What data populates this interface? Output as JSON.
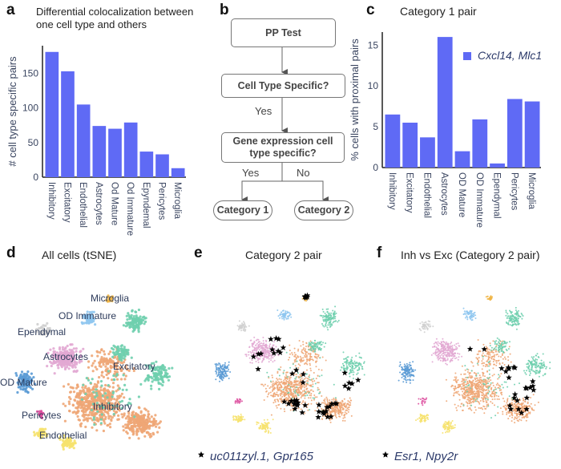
{
  "panels": {
    "a": {
      "letter": "a",
      "title_line1": "Differential colocalization between",
      "title_line2": "one cell type and others"
    },
    "b": {
      "letter": "b",
      "box1": "PP Test",
      "box2": "Cell Type Specific?",
      "yes1": "Yes",
      "box3": "Gene expression cell type specific?",
      "yes2": "Yes",
      "no": "No",
      "cat1": "Category 1",
      "cat2": "Category 2"
    },
    "c": {
      "letter": "c",
      "title": "Category 1 pair"
    },
    "d": {
      "letter": "d",
      "title": "All cells (tSNE)"
    },
    "e": {
      "letter": "e",
      "title": "Category 2 pair",
      "legend": "uc011zyl.1, Gpr165"
    },
    "f": {
      "letter": "f",
      "title": "Inh vs Exc (Category 2 pair)",
      "legend": "Esr1, Npy2r"
    }
  },
  "cluster_labels": {
    "microglia": "Microglia",
    "od_immature": "OD Immature",
    "ependymal": "Ependymal",
    "astrocytes": "Astrocytes",
    "excitatory": "Excitatory",
    "od_mature": "OD Mature",
    "inhibitory": "Inhibitory",
    "pericytes": "Pericytes",
    "endothelial": "Endothelial"
  },
  "colors": {
    "bar": "#5f6af5",
    "inhibitory": "#eea676",
    "excitatory": "#6fcfae",
    "astrocytes": "#e2a9d3",
    "od_mature": "#5b9bd5",
    "od_immature": "#8fc6ef",
    "ependymal": "#cfcfcf",
    "microglia": "#f0b545",
    "pericytes": "#dd4f9e",
    "endothelial": "#f6e26e",
    "star": "#000000"
  },
  "chart_data": [
    {
      "type": "bar",
      "title": "Differential colocalization between one cell type and others",
      "xlabel": "",
      "ylabel": "# cell type specific pairs",
      "categories": [
        "Inhibitory",
        "Excitatory",
        "Endothelial",
        "Astrocytes",
        "Od Mature",
        "Od Immature",
        "Epyndemal",
        "Pericytes",
        "Microglia"
      ],
      "values": [
        181,
        153,
        105,
        74,
        70,
        79,
        37,
        33,
        13
      ],
      "yticks": [
        0,
        50,
        100,
        150
      ],
      "ylim": [
        0,
        190
      ],
      "grid": false
    },
    {
      "type": "bar",
      "title": "Category 1 pair",
      "xlabel": "",
      "ylabel": "% cells with proximal pairs",
      "categories": [
        "Inhibitory",
        "Excitatory",
        "Endothelial",
        "Astrocytes",
        "OD Mature",
        "OD Immature",
        "Ependymal",
        "Pericytes",
        "Microglia"
      ],
      "series": [
        {
          "name": "Cxcl14, Mlc1",
          "values": [
            6.5,
            5.5,
            3.7,
            16.0,
            2.0,
            5.9,
            0.5,
            8.4,
            8.1
          ]
        }
      ],
      "yticks": [
        0,
        5,
        10,
        15
      ],
      "ylim": [
        0,
        16.6
      ],
      "legend": "top-right",
      "grid": false
    }
  ]
}
